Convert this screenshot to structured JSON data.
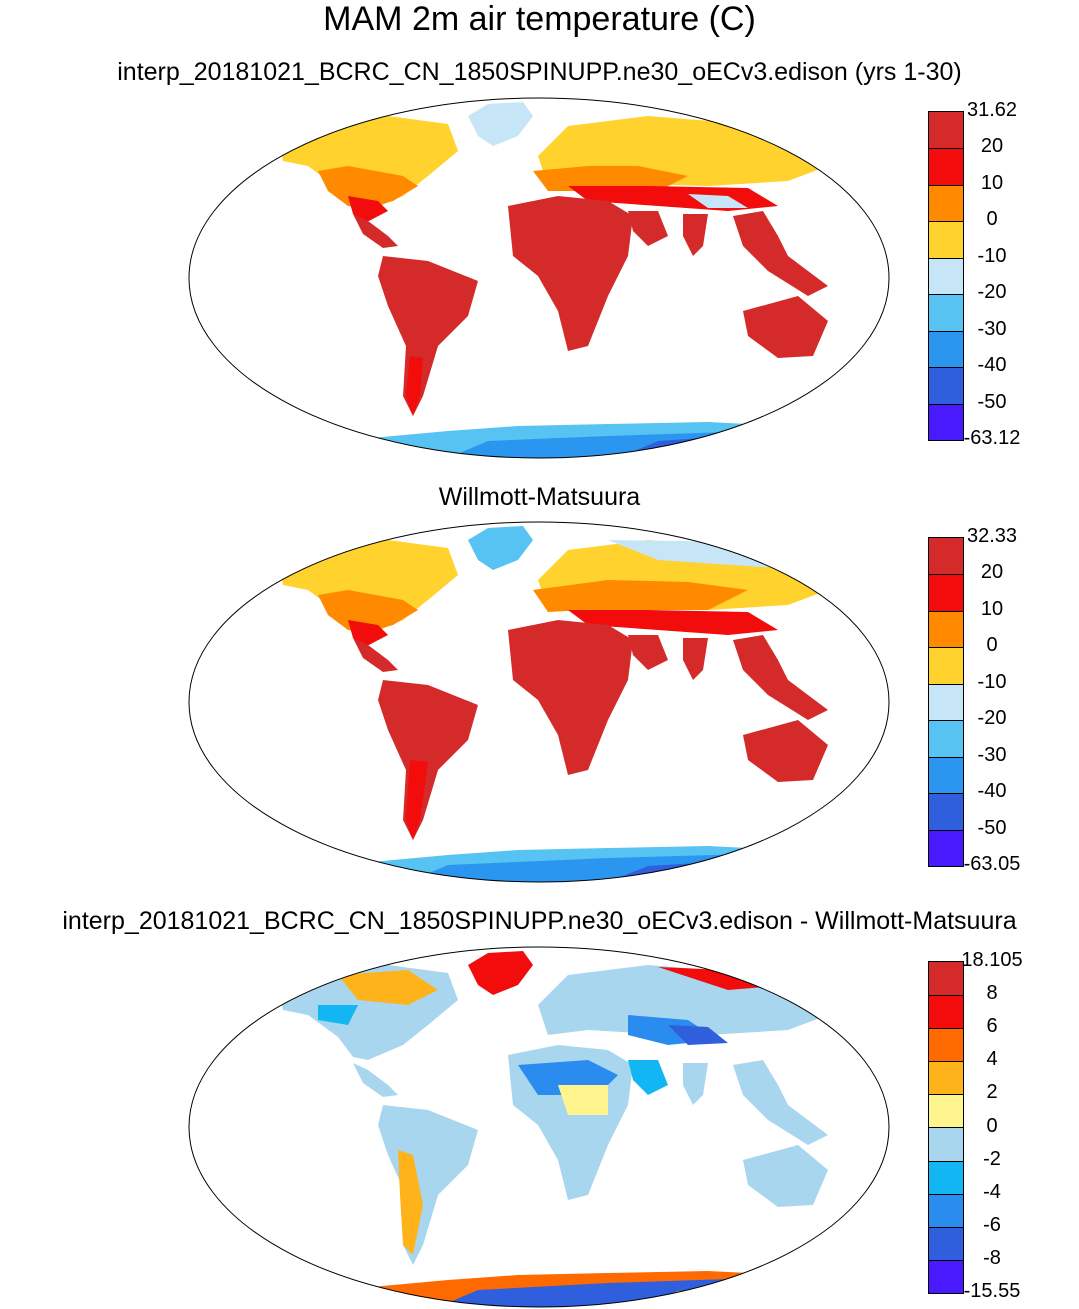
{
  "figure": {
    "title": "MAM 2m air temperature (C)"
  },
  "panels": [
    {
      "title": "interp_20181021_BCRC_CN_1850SPINUPP.ne30_oECv3.edison (yrs 1-30)",
      "colorbar": {
        "labels": [
          "31.62",
          "20",
          "10",
          "0",
          "-10",
          "-20",
          "-30",
          "-40",
          "-50",
          "-63.12"
        ],
        "colors": [
          "#d42a2a",
          "#f20c0c",
          "#ff8a00",
          "#ffd22e",
          "#c6e6f8",
          "#56c3f2",
          "#2b96ef",
          "#2f5fdc",
          "#4a1aff"
        ]
      }
    },
    {
      "title": "Willmott-Matsuura",
      "colorbar": {
        "labels": [
          "32.33",
          "20",
          "10",
          "0",
          "-10",
          "-20",
          "-30",
          "-40",
          "-50",
          "-63.05"
        ],
        "colors": [
          "#d42a2a",
          "#f20c0c",
          "#ff8a00",
          "#ffd22e",
          "#c6e6f8",
          "#56c3f2",
          "#2b96ef",
          "#2f5fdc",
          "#4a1aff"
        ]
      }
    },
    {
      "title": "interp_20181021_BCRC_CN_1850SPINUPP.ne30_oECv3.edison - Willmott-Matsuura",
      "colorbar": {
        "labels": [
          "18.105",
          "8",
          "6",
          "4",
          "2",
          "0",
          "-2",
          "-4",
          "-6",
          "-8",
          "-15.55"
        ],
        "colors": [
          "#d42a2a",
          "#f20c0c",
          "#ff6a00",
          "#ffb31a",
          "#fff58f",
          "#a8d6ef",
          "#12b6f2",
          "#2b8cef",
          "#2f5fdc",
          "#4a1aff"
        ]
      }
    }
  ]
}
